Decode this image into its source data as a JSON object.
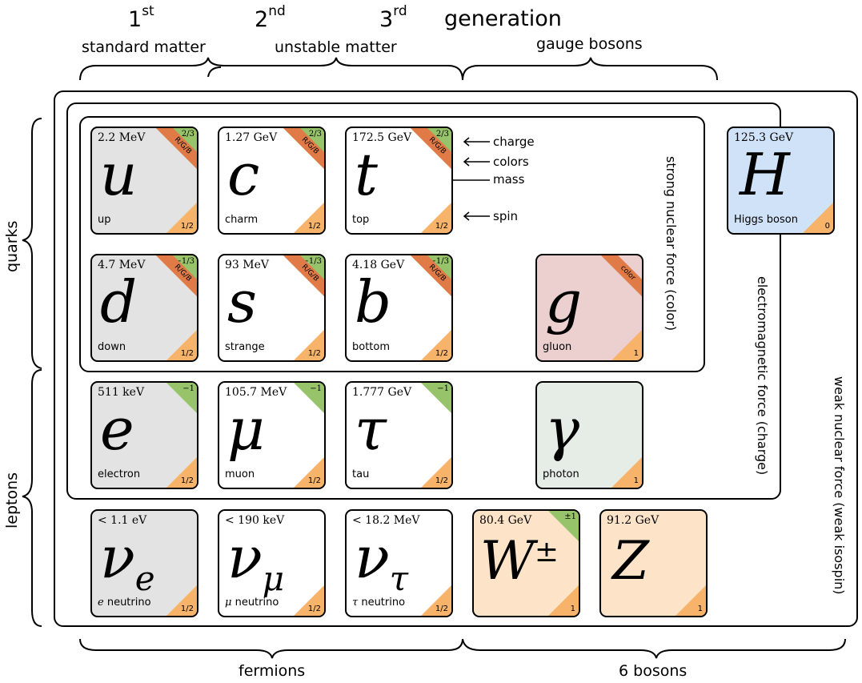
{
  "header": {
    "gen1": "1",
    "gen1_sup": "st",
    "gen2": "2",
    "gen2_sup": "nd",
    "gen3": "3",
    "gen3_sup": "rd",
    "generation": "generation",
    "standard_matter": "standard matter",
    "unstable_matter": "unstable matter",
    "gauge_bosons": "gauge bosons"
  },
  "sides": {
    "quarks": "quarks",
    "leptons": "leptons"
  },
  "footer": {
    "fermions": "fermions",
    "bosons": "6 bosons"
  },
  "forces": {
    "strong": "strong nuclear force (color)",
    "em": "electromagnetic force (charge)",
    "weak": "weak nuclear force (weak isospin)"
  },
  "annotations": {
    "charge": "charge",
    "colors": "colors",
    "mass": "mass",
    "spin": "spin"
  },
  "particles": {
    "u": {
      "mass": "2.2 MeV",
      "symbol": "u",
      "name": "up",
      "charge": "2/3",
      "color": "R/G/B",
      "spin": "1/2"
    },
    "c": {
      "mass": "1.27 GeV",
      "symbol": "c",
      "name": "charm",
      "charge": "2/3",
      "color": "R/G/B",
      "spin": "1/2"
    },
    "t": {
      "mass": "172.5 GeV",
      "symbol": "t",
      "name": "top",
      "charge": "2/3",
      "color": "R/G/B",
      "spin": "1/2"
    },
    "d": {
      "mass": "4.7 MeV",
      "symbol": "d",
      "name": "down",
      "charge": "−1/3",
      "color": "R/G/B",
      "spin": "1/2"
    },
    "s": {
      "mass": "93 MeV",
      "symbol": "s",
      "name": "strange",
      "charge": "−1/3",
      "color": "R/G/B",
      "spin": "1/2"
    },
    "b": {
      "mass": "4.18 GeV",
      "symbol": "b",
      "name": "bottom",
      "charge": "−1/3",
      "color": "R/G/B",
      "spin": "1/2"
    },
    "g": {
      "symbol": "g",
      "name": "gluon",
      "color": "color",
      "spin": "1"
    },
    "H": {
      "mass": "125.3 GeV",
      "symbol": "H",
      "name": "Higgs boson",
      "spin": "0"
    },
    "e": {
      "mass": "511 keV",
      "symbol": "e",
      "name": "electron",
      "charge": "−1",
      "spin": "1/2"
    },
    "mu": {
      "mass": "105.7 MeV",
      "symbol": "μ",
      "name": "muon",
      "charge": "−1",
      "spin": "1/2"
    },
    "tau": {
      "mass": "1.777 GeV",
      "symbol": "τ",
      "name": "tau",
      "charge": "−1",
      "spin": "1/2"
    },
    "gamma": {
      "symbol": "γ",
      "name": "photon",
      "spin": "1"
    },
    "nue": {
      "mass": "< 1.1 eV",
      "symbol": "ν",
      "sub": "e",
      "name_it": "e",
      "name": " neutrino",
      "spin": "1/2"
    },
    "numu": {
      "mass": "< 190 keV",
      "symbol": "ν",
      "sub": "μ",
      "name_it": "μ",
      "name": " neutrino",
      "spin": "1/2"
    },
    "nutau": {
      "mass": "< 18.2 MeV",
      "symbol": "ν",
      "sub": "τ",
      "name_it": "τ",
      "name": " neutrino",
      "spin": "1/2"
    },
    "W": {
      "mass": "80.4 GeV",
      "symbol": "W",
      "sup": "±",
      "charge": "±1",
      "spin": "1"
    },
    "Z": {
      "mass": "91.2 GeV",
      "symbol": "Z",
      "spin": "1"
    }
  },
  "colors": {
    "fermion_gen1": "#e3e3e3",
    "fermion": "#ffffff",
    "higgs": "#cfe2f8",
    "gluon": "#eccfcf",
    "photon": "#e6ede6",
    "weak_boson": "#fde3c8",
    "spin_corner": "#f7b36a",
    "charge_corner": "#97c36a",
    "color_band": "#e07b47"
  }
}
